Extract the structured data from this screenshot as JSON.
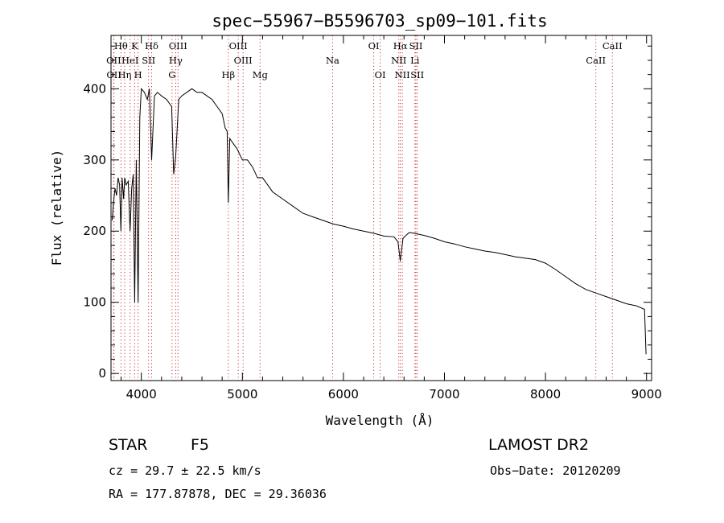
{
  "chart_data": {
    "type": "line",
    "title": "spec−55967−B5596703_sp09−101.fits",
    "xlabel": "Wavelength (Å)",
    "ylabel": "Flux (relative)",
    "xlim": [
      3700,
      9050
    ],
    "ylim": [
      -10,
      475
    ],
    "x_ticks": [
      4000,
      5000,
      6000,
      7000,
      8000,
      9000
    ],
    "y_ticks": [
      0,
      100,
      200,
      300,
      400
    ],
    "grid": false,
    "line_color": "#000000",
    "marker_line_color": "#cc3333",
    "line_markers": [
      {
        "label": "Hθ",
        "wavelength": 3798,
        "row": 0
      },
      {
        "label": "K",
        "wavelength": 3934,
        "row": 0
      },
      {
        "label": "Hδ",
        "wavelength": 4102,
        "row": 0
      },
      {
        "label": "OIII",
        "wavelength": 4363,
        "row": 0
      },
      {
        "label": "OIII",
        "wavelength": 4959,
        "row": 0
      },
      {
        "label": "OI",
        "wavelength": 6300,
        "row": 0
      },
      {
        "label": "Hα",
        "wavelength": 6563,
        "row": 0
      },
      {
        "label": "SII",
        "wavelength": 6717,
        "row": 0
      },
      {
        "label": "CaII",
        "wavelength": 8662,
        "row": 0
      },
      {
        "label": "OII",
        "wavelength": 3727,
        "row": 1
      },
      {
        "label": "HeI",
        "wavelength": 3889,
        "row": 1
      },
      {
        "label": "SII",
        "wavelength": 4072,
        "row": 1
      },
      {
        "label": "Hγ",
        "wavelength": 4340,
        "row": 1
      },
      {
        "label": "OIII",
        "wavelength": 5007,
        "row": 1
      },
      {
        "label": "Na",
        "wavelength": 5893,
        "row": 1
      },
      {
        "label": "NII",
        "wavelength": 6548,
        "row": 1
      },
      {
        "label": "Li",
        "wavelength": 6708,
        "row": 1
      },
      {
        "label": "CaII",
        "wavelength": 8498,
        "row": 1
      },
      {
        "label": "OII",
        "wavelength": 3729,
        "row": 2
      },
      {
        "label": "Hη",
        "wavelength": 3835,
        "row": 2
      },
      {
        "label": "H",
        "wavelength": 3968,
        "row": 2
      },
      {
        "label": "G",
        "wavelength": 4304,
        "row": 2
      },
      {
        "label": "Hβ",
        "wavelength": 4861,
        "row": 2
      },
      {
        "label": "Mg",
        "wavelength": 5175,
        "row": 2
      },
      {
        "label": "OI",
        "wavelength": 6364,
        "row": 2
      },
      {
        "label": "NII",
        "wavelength": 6583,
        "row": 2
      },
      {
        "label": "SII",
        "wavelength": 6731,
        "row": 2
      }
    ],
    "series": [
      {
        "x": [
          3710,
          3725,
          3740,
          3755,
          3770,
          3785,
          3798,
          3810,
          3825,
          3835,
          3850,
          3870,
          3889,
          3905,
          3920,
          3934,
          3950,
          3968,
          3985,
          4000,
          4030,
          4060,
          4080,
          4102,
          4130,
          4160,
          4200,
          4250,
          4300,
          4320,
          4340,
          4370,
          4400,
          4450,
          4500,
          4550,
          4600,
          4650,
          4700,
          4750,
          4800,
          4830,
          4850,
          4861,
          4875,
          4900,
          4950,
          5000,
          5050,
          5100,
          5150,
          5200,
          5300,
          5400,
          5500,
          5600,
          5700,
          5800,
          5900,
          6000,
          6100,
          6200,
          6300,
          6400,
          6500,
          6540,
          6563,
          6590,
          6650,
          6700,
          6800,
          6900,
          7000,
          7100,
          7200,
          7300,
          7400,
          7500,
          7600,
          7700,
          7800,
          7900,
          8000,
          8100,
          8200,
          8300,
          8400,
          8500,
          8600,
          8700,
          8800,
          8900,
          8980,
          8995
        ],
        "y": [
          215,
          240,
          260,
          250,
          275,
          265,
          200,
          275,
          245,
          275,
          265,
          270,
          200,
          260,
          280,
          100,
          300,
          100,
          360,
          400,
          395,
          385,
          400,
          300,
          390,
          395,
          390,
          385,
          375,
          280,
          305,
          385,
          390,
          395,
          400,
          395,
          395,
          390,
          385,
          375,
          365,
          345,
          340,
          240,
          330,
          325,
          315,
          300,
          300,
          290,
          275,
          275,
          255,
          245,
          235,
          225,
          220,
          215,
          210,
          207,
          203,
          200,
          197,
          193,
          192,
          185,
          158,
          190,
          198,
          197,
          194,
          190,
          185,
          182,
          178,
          175,
          172,
          170,
          167,
          164,
          162,
          160,
          155,
          146,
          136,
          126,
          118,
          113,
          108,
          103,
          98,
          95,
          90,
          27
        ]
      }
    ]
  },
  "info": {
    "object_class": "STAR",
    "subclass": "F5",
    "survey": "LAMOST DR2",
    "redshift_line": "cz = 29.7 ± 22.5 km/s",
    "obs_date_line": "Obs−Date: 20120209",
    "coords_line": "RA = 177.87878, DEC =  29.36036"
  }
}
